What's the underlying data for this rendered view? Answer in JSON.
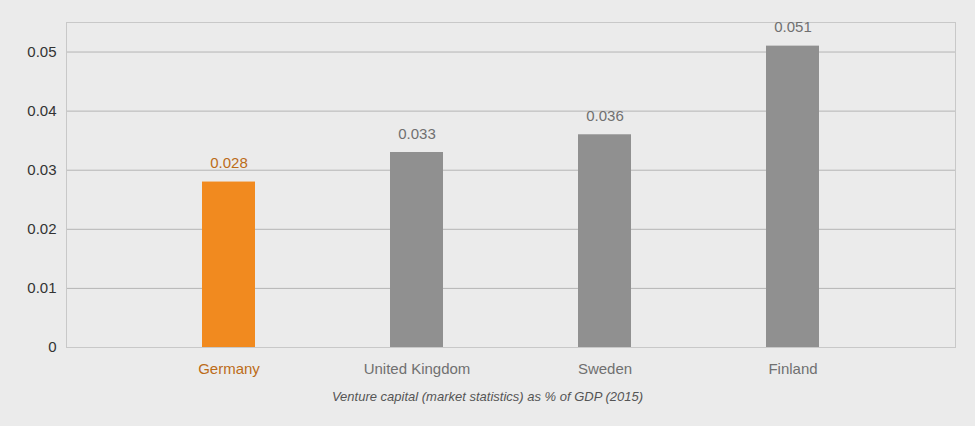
{
  "chart_data": {
    "type": "bar",
    "title": "Venture capital (market statistics) as % of GDP (2015)",
    "categories": [
      "Germany",
      "United Kingdom",
      "Sweden",
      "Finland"
    ],
    "values": [
      0.028,
      0.033,
      0.036,
      0.051
    ],
    "colors": [
      "#f18a1f",
      "#909090",
      "#909090",
      "#909090"
    ],
    "ylim": [
      0,
      0.055
    ],
    "yticks": [
      0,
      0.01,
      0.02,
      0.03,
      0.04,
      0.05
    ],
    "grid": true,
    "data_labels": true
  }
}
